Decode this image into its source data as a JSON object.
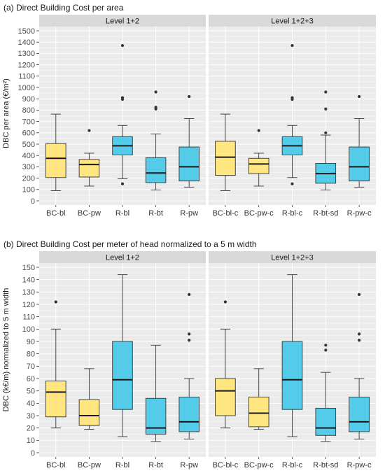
{
  "colors": {
    "bc": "#FFE680",
    "r": "#55CBEA",
    "panel_bg": "#EBEBEB",
    "strip_bg": "#D9D9D9",
    "grid": "#FFFFFF"
  },
  "chart_data": [
    {
      "type": "box",
      "title": "(a) Direct Building Cost per area",
      "ylabel": "DBC per area (€/m²)",
      "ylim": [
        0,
        1500
      ],
      "yticks": [
        0,
        100,
        200,
        300,
        400,
        500,
        600,
        700,
        800,
        900,
        1000,
        1100,
        1200,
        1300,
        1400,
        1500
      ],
      "grid": true,
      "panels": [
        {
          "strip": "Level 1+2",
          "boxes": [
            {
              "label": "BC-bl",
              "group": "BC",
              "min": 90,
              "q1": 205,
              "median": 375,
              "q3": 505,
              "max": 765,
              "outliers": []
            },
            {
              "label": "BC-pw",
              "group": "BC",
              "min": 130,
              "q1": 210,
              "median": 320,
              "q3": 365,
              "max": 420,
              "outliers": [
                620
              ]
            },
            {
              "label": "R-bl",
              "group": "R",
              "min": 195,
              "q1": 405,
              "median": 485,
              "q3": 565,
              "max": 665,
              "outliers": [
                150,
                895,
                910,
                1370
              ]
            },
            {
              "label": "R-bt",
              "group": "R",
              "min": 95,
              "q1": 160,
              "median": 245,
              "q3": 380,
              "max": 590,
              "outliers": [
                810,
                825,
                960
              ]
            },
            {
              "label": "R-pw",
              "group": "R",
              "min": 120,
              "q1": 175,
              "median": 300,
              "q3": 475,
              "max": 725,
              "outliers": [
                920
              ]
            }
          ]
        },
        {
          "strip": "Level 1+2+3",
          "boxes": [
            {
              "label": "BC-bl-c",
              "group": "BC",
              "min": 90,
              "q1": 225,
              "median": 385,
              "q3": 525,
              "max": 765,
              "outliers": []
            },
            {
              "label": "BC-pw-c",
              "group": "BC",
              "min": 130,
              "q1": 240,
              "median": 325,
              "q3": 375,
              "max": 420,
              "outliers": [
                620
              ]
            },
            {
              "label": "R-bl-c",
              "group": "R",
              "min": 205,
              "q1": 405,
              "median": 485,
              "q3": 565,
              "max": 665,
              "outliers": [
                150,
                895,
                910,
                1370
              ]
            },
            {
              "label": "R-bt-sd",
              "group": "R",
              "min": 95,
              "q1": 155,
              "median": 240,
              "q3": 330,
              "max": 580,
              "outliers": [
                600,
                810,
                960
              ]
            },
            {
              "label": "R-pw-c",
              "group": "R",
              "min": 120,
              "q1": 175,
              "median": 300,
              "q3": 475,
              "max": 725,
              "outliers": [
                920
              ]
            }
          ]
        }
      ]
    },
    {
      "type": "box",
      "title": "(b) Direct Building Cost per meter of head normalized to a 5 m width",
      "ylabel": "DBC (k€/m) normalized to 5 m width",
      "ylim": [
        0,
        150
      ],
      "yticks": [
        0,
        10,
        20,
        30,
        40,
        50,
        60,
        70,
        80,
        90,
        100,
        110,
        120,
        130,
        140,
        150
      ],
      "grid": true,
      "panels": [
        {
          "strip": "Level 1+2",
          "boxes": [
            {
              "label": "BC-bl",
              "group": "BC",
              "min": 20,
              "q1": 29,
              "median": 49,
              "q3": 58,
              "max": 100,
              "outliers": [
                122
              ]
            },
            {
              "label": "BC-pw",
              "group": "BC",
              "min": 19,
              "q1": 22,
              "median": 30,
              "q3": 43,
              "max": 68,
              "outliers": []
            },
            {
              "label": "R-bl",
              "group": "R",
              "min": 13,
              "q1": 35,
              "median": 59,
              "q3": 90,
              "max": 144,
              "outliers": []
            },
            {
              "label": "R-bt",
              "group": "R",
              "min": 9,
              "q1": 15,
              "median": 20,
              "q3": 44,
              "max": 87,
              "outliers": []
            },
            {
              "label": "R-pw",
              "group": "R",
              "min": 11,
              "q1": 17,
              "median": 25,
              "q3": 45,
              "max": 60,
              "outliers": [
                91,
                96,
                128
              ]
            }
          ]
        },
        {
          "strip": "Level 1+2+3",
          "boxes": [
            {
              "label": "BC-bl-c",
              "group": "BC",
              "min": 20,
              "q1": 30,
              "median": 50,
              "q3": 60,
              "max": 100,
              "outliers": [
                122
              ]
            },
            {
              "label": "BC-pw-c",
              "group": "BC",
              "min": 19,
              "q1": 21,
              "median": 32,
              "q3": 45,
              "max": 68,
              "outliers": []
            },
            {
              "label": "R-bl-c",
              "group": "R",
              "min": 13,
              "q1": 35,
              "median": 59,
              "q3": 90,
              "max": 144,
              "outliers": []
            },
            {
              "label": "R-bt-sd",
              "group": "R",
              "min": 9,
              "q1": 14,
              "median": 20,
              "q3": 36,
              "max": 65,
              "outliers": [
                83,
                87
              ]
            },
            {
              "label": "R-pw-c",
              "group": "R",
              "min": 11,
              "q1": 17,
              "median": 25,
              "q3": 45,
              "max": 60,
              "outliers": [
                91,
                96,
                128
              ]
            }
          ]
        }
      ]
    }
  ]
}
